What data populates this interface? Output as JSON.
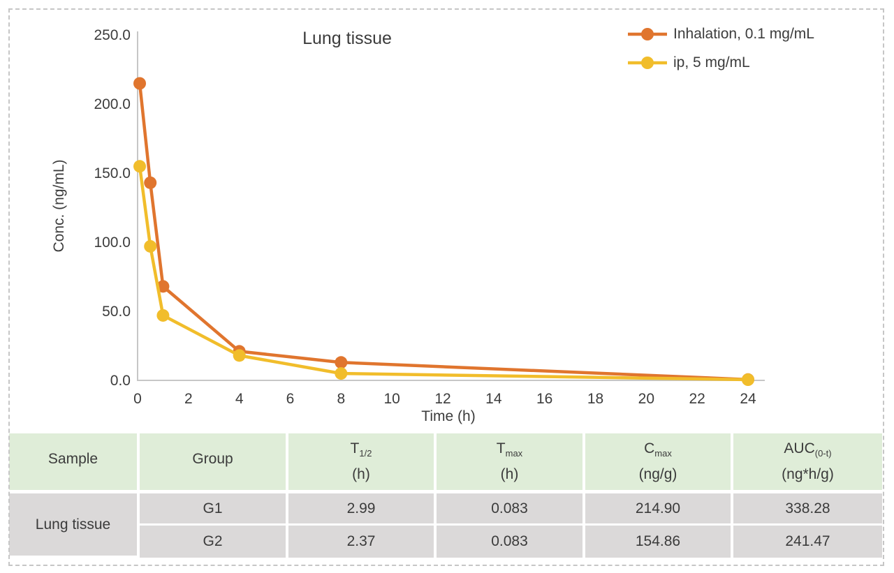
{
  "chart_data": {
    "type": "line",
    "title": "Lung tissue",
    "xlabel": "Time (h)",
    "ylabel": "Conc. (ng/mL)",
    "xlim": [
      0,
      24
    ],
    "ylim": [
      0,
      250
    ],
    "x_ticks": [
      0,
      2,
      4,
      6,
      8,
      10,
      12,
      14,
      16,
      18,
      20,
      22,
      24
    ],
    "y_ticks": [
      0,
      50,
      100,
      150,
      200,
      250
    ],
    "y_tick_labels": [
      "0.0",
      "50.0",
      "100.0",
      "150.0",
      "200.0",
      "250.0"
    ],
    "grid": false,
    "legend_position": "top-right",
    "axis_color": "#c6c6c6",
    "tick_label_color": "#3c3c3c",
    "series": [
      {
        "name": "Inhalation, 0.1 mg/mL",
        "color": "#e0752e",
        "x": [
          0.083,
          0.5,
          1,
          4,
          8,
          24
        ],
        "y": [
          214.9,
          143,
          68,
          21,
          13,
          0.6
        ]
      },
      {
        "name": "ip, 5 mg/mL",
        "color": "#f1bd2b",
        "x": [
          0.083,
          0.5,
          1,
          4,
          8,
          24
        ],
        "y": [
          154.9,
          97,
          47,
          18,
          5,
          0.5
        ]
      }
    ]
  },
  "table": {
    "header_bg": "#dfedd8",
    "row_bg": "#dbd9d9",
    "columns": [
      {
        "label": "Sample",
        "sub": "",
        "unit": ""
      },
      {
        "label": "Group",
        "sub": "",
        "unit": ""
      },
      {
        "label": "T",
        "sub": "1/2",
        "unit": "(h)"
      },
      {
        "label": "T",
        "sub": "max",
        "unit": "(h)"
      },
      {
        "label": "C",
        "sub": "max",
        "unit": "(ng/g)"
      },
      {
        "label": "AUC",
        "sub": "(0-t)",
        "unit": "(ng*h/g)"
      }
    ],
    "sample_label": "Lung tissue",
    "rows": [
      {
        "group": "G1",
        "t_half": "2.99",
        "t_max": "0.083",
        "c_max": "214.90",
        "auc": "338.28"
      },
      {
        "group": "G2",
        "t_half": "2.37",
        "t_max": "0.083",
        "c_max": "154.86",
        "auc": "241.47"
      }
    ]
  }
}
